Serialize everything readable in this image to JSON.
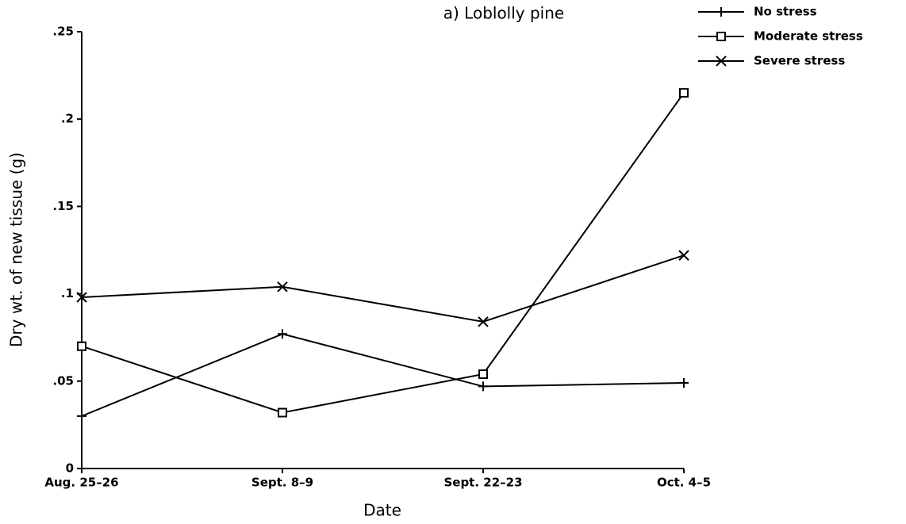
{
  "chart_data": {
    "type": "line",
    "title": "a)    Loblolly pine",
    "x_label": "Date",
    "y_label": "Dry wt. of new tissue (g)",
    "categories": [
      "Aug. 25–26",
      "Sept. 8–9",
      "Sept. 22–23",
      "Oct. 4–5"
    ],
    "series": [
      {
        "name": "No stress",
        "color": "#000000",
        "marker": "plus",
        "values": [
          0.03,
          0.077,
          0.047,
          0.049
        ]
      },
      {
        "name": "Moderate stress",
        "color": "#000000",
        "marker": "square",
        "values": [
          0.07,
          0.032,
          0.054,
          0.215
        ]
      },
      {
        "name": "Severe stress",
        "color": "#000000",
        "marker": "x",
        "values": [
          0.098,
          0.104,
          0.084,
          0.122
        ]
      }
    ],
    "ylim": [
      0,
      0.25
    ],
    "yticks": [
      0,
      {
        "value": 0.05,
        "label": ".05"
      },
      {
        "value": 0.1,
        "label": ".1"
      },
      {
        "value": 0.15,
        "label": ".15"
      },
      {
        "value": 0.2,
        "label": ".2"
      },
      {
        "value": 0.25,
        "label": ".25"
      }
    ],
    "grid": false,
    "legend": "upper right"
  }
}
